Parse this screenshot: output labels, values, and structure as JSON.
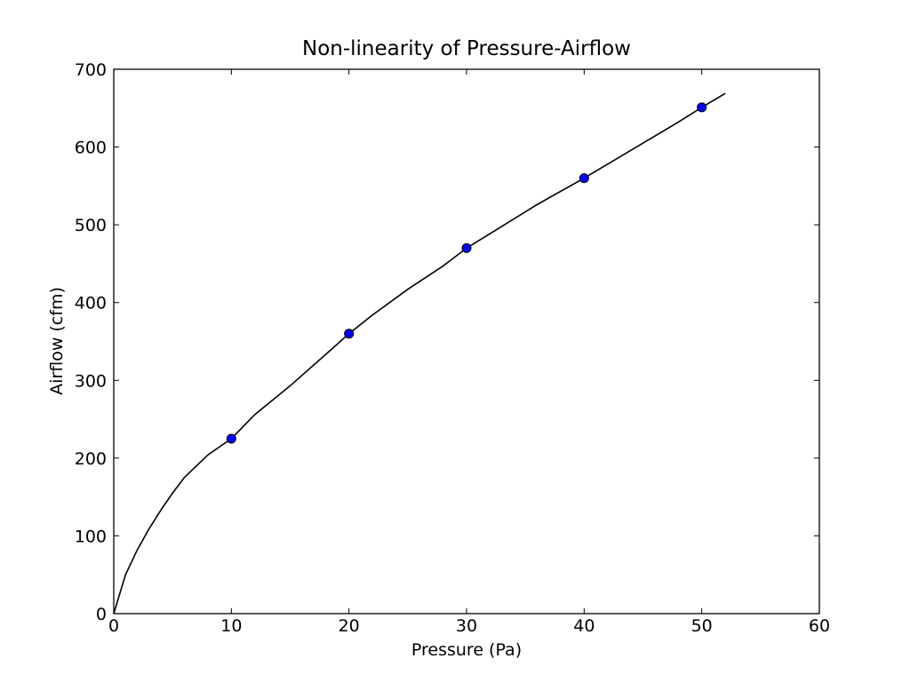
{
  "chart_data": {
    "type": "scatter",
    "title": "Non-linearity of Pressure-Airflow",
    "xlabel": "Pressure (Pa)",
    "ylabel": "Airflow (cfm)",
    "xlim": [
      0,
      60
    ],
    "ylim": [
      0,
      700
    ],
    "xticks": [
      0,
      10,
      20,
      30,
      40,
      50,
      60
    ],
    "yticks": [
      0,
      100,
      200,
      300,
      400,
      500,
      600,
      700
    ],
    "grid": false,
    "series": [
      {
        "kind": "scatter",
        "marker": "circle",
        "color": "#0000ff",
        "x": [
          10,
          20,
          30,
          40,
          50
        ],
        "y": [
          225,
          360,
          470,
          560,
          651
        ]
      },
      {
        "kind": "line",
        "color": "#000000",
        "x": [
          0,
          1,
          2,
          3,
          4,
          5,
          6,
          8,
          10,
          12,
          15,
          18,
          20,
          22,
          25,
          28,
          30,
          33,
          36,
          40,
          44,
          48,
          50,
          52
        ],
        "y": [
          0,
          50,
          82,
          109,
          133,
          155,
          175,
          204,
          225,
          256,
          293,
          333,
          360,
          384,
          417,
          447,
          470,
          498,
          526,
          560,
          596,
          632,
          651,
          669
        ]
      }
    ]
  }
}
